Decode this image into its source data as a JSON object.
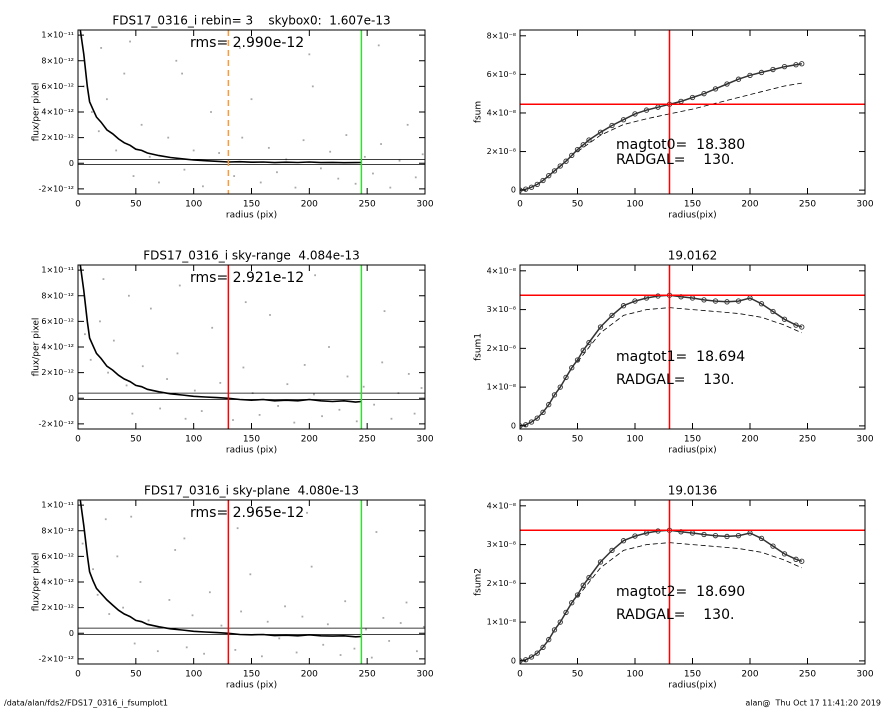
{
  "chart_data": [
    {
      "type": "scatter",
      "title": "FDS17_0316_i rebin= 3    skybox0:  1.607e-13",
      "annotations": [
        "rms= 2.990e-12"
      ],
      "xlabel": "radius (pix)",
      "ylabel": "flux/per pixel",
      "xlim": [
        0,
        300
      ],
      "ylim": [
        -2.4e-12,
        1.04e-11
      ],
      "xticks": [
        0,
        50,
        100,
        150,
        200,
        250,
        300
      ],
      "yticks": [
        {
          "value": 1e-11,
          "label": "1×10⁻¹¹"
        },
        {
          "value": 8e-12,
          "label": "8×10⁻¹²"
        },
        {
          "value": 6e-12,
          "label": "6×10⁻¹²"
        },
        {
          "value": 4e-12,
          "label": "4×10⁻¹²"
        },
        {
          "value": 2e-12,
          "label": "2×10⁻¹²"
        },
        0,
        {
          "value": -2e-12,
          "label": "-2×10⁻¹²"
        }
      ],
      "points": {
        "color": "#a8a8a8",
        "x": [
          5,
          12,
          18,
          25,
          33,
          40,
          48,
          55,
          62,
          70,
          78,
          85,
          92,
          100,
          108,
          115,
          122,
          135,
          142,
          150,
          158,
          165,
          172,
          180,
          188,
          195,
          203,
          210,
          218,
          225,
          232,
          240,
          248,
          255,
          262,
          270,
          278,
          285,
          292,
          298,
          20,
          45,
          90,
          140,
          200,
          260
        ],
        "y": [
          6e-12,
          4e-12,
          2.5e-12,
          5e-12,
          1e-12,
          7e-12,
          -1e-12,
          3e-12,
          5e-13,
          -1.5e-12,
          2e-12,
          8e-12,
          -5e-13,
          1e-12,
          -1.8e-12,
          4e-12,
          8e-13,
          -1e-12,
          2e-12,
          5e-12,
          -1.5e-12,
          1.2e-12,
          -7e-13,
          3e-13,
          -1.9e-12,
          1.8e-12,
          6e-12,
          -4e-13,
          9e-13,
          -1.2e-12,
          2.2e-12,
          -1.6e-12,
          5e-13,
          -8e-13,
          1.5e-12,
          -1.9e-12,
          2e-13,
          3e-12,
          -1.1e-12,
          7e-13,
          9e-12,
          9.5e-12,
          7e-12,
          9e-12,
          8.5e-12,
          9.2e-12
        ]
      },
      "profile": {
        "color": "#000000",
        "x": [
          2,
          5,
          8,
          10,
          13,
          16,
          20,
          25,
          30,
          35,
          40,
          45,
          50,
          55,
          60,
          70,
          80,
          90,
          100,
          110,
          120,
          130,
          140,
          150,
          160,
          170,
          180,
          190,
          200,
          210,
          220,
          230,
          240,
          245
        ],
        "y": [
          1.04e-11,
          8.5e-12,
          6e-12,
          4.8e-12,
          4.2e-12,
          3.6e-12,
          3.2e-12,
          2.6e-12,
          2.3e-12,
          1.9e-12,
          1.6e-12,
          1.4e-12,
          1.1e-12,
          1e-12,
          8e-13,
          6e-13,
          4.5e-13,
          3.5e-13,
          2.5e-13,
          2e-13,
          1.5e-13,
          1e-13,
          1.2e-13,
          8e-14,
          1e-13,
          5e-14,
          8e-14,
          6e-14,
          1e-13,
          5e-14,
          7e-14,
          4e-14,
          5e-14,
          6e-14
        ]
      },
      "hlines": [
        3e-13,
        -1e-13
      ],
      "vlines": [
        {
          "x": 130,
          "color": "#ff9933",
          "dashed": true
        },
        {
          "x": 245,
          "color": "#33dd33",
          "dashed": false
        }
      ]
    },
    {
      "type": "line",
      "annotations": [
        "magtot0=  18.380",
        "RADGAL=    130."
      ],
      "xlabel": "radius(pix)",
      "ylabel": "fsum",
      "xlim": [
        0,
        300
      ],
      "ylim": [
        -2e-09,
        8.3e-08
      ],
      "xticks": [
        0,
        50,
        100,
        150,
        200,
        250,
        300
      ],
      "yticks": [
        0,
        {
          "value": 2e-08,
          "label": "2×10⁻⁸"
        },
        {
          "value": 4e-08,
          "label": "4×10⁻⁸"
        },
        {
          "value": 6e-08,
          "label": "6×10⁻⁸"
        },
        {
          "value": 8e-08,
          "label": "8×10⁻⁸"
        }
      ],
      "growth": {
        "color": "#333333",
        "x": [
          0,
          5,
          10,
          15,
          20,
          25,
          30,
          35,
          40,
          45,
          50,
          55,
          60,
          70,
          80,
          90,
          100,
          110,
          120,
          130,
          140,
          150,
          160,
          170,
          180,
          190,
          200,
          210,
          220,
          230,
          240,
          245
        ],
        "y": [
          0,
          5e-10,
          1.5e-09,
          3e-09,
          5e-09,
          7.5e-09,
          1e-08,
          1.25e-08,
          1.5e-08,
          1.8e-08,
          2.1e-08,
          2.35e-08,
          2.6e-08,
          3e-08,
          3.35e-08,
          3.65e-08,
          3.95e-08,
          4.15e-08,
          4.3e-08,
          4.45e-08,
          4.6e-08,
          4.8e-08,
          5e-08,
          5.25e-08,
          5.5e-08,
          5.75e-08,
          5.95e-08,
          6.1e-08,
          6.25e-08,
          6.4e-08,
          6.5e-08,
          6.55e-08
        ]
      },
      "dashed": {
        "x": [
          50,
          70,
          90,
          110,
          130,
          150,
          170,
          190,
          210,
          230,
          245
        ],
        "y": [
          2e-08,
          2.85e-08,
          3.4e-08,
          3.7e-08,
          3.95e-08,
          4.2e-08,
          4.5e-08,
          4.8e-08,
          5.1e-08,
          5.4e-08,
          5.55e-08
        ]
      },
      "vline": 130,
      "hline": 4.45e-08,
      "cross_color": "#ff0000"
    },
    {
      "type": "scatter",
      "title": "FDS17_0316_i sky-range  4.084e-13",
      "annotations": [
        "rms= 2.921e-12"
      ],
      "xlabel": "radius (pix)",
      "ylabel": "flux/per pixel",
      "xlim": [
        0,
        300
      ],
      "ylim": [
        -2.4e-12,
        1.04e-11
      ],
      "xticks": [
        0,
        50,
        100,
        150,
        200,
        250,
        300
      ],
      "yticks": [
        {
          "value": 1e-11,
          "label": "1×10⁻¹¹"
        },
        {
          "value": 8e-12,
          "label": "8×10⁻¹²"
        },
        {
          "value": 6e-12,
          "label": "6×10⁻¹²"
        },
        {
          "value": 4e-12,
          "label": "4×10⁻¹²"
        },
        {
          "value": 2e-12,
          "label": "2×10⁻¹²"
        },
        0,
        {
          "value": -2e-12,
          "label": "-2×10⁻¹²"
        }
      ],
      "points": {
        "color": "#a8a8a8",
        "x": [
          6,
          11,
          19,
          26,
          31,
          42,
          47,
          56,
          63,
          71,
          77,
          86,
          93,
          101,
          107,
          116,
          123,
          134,
          143,
          151,
          157,
          166,
          173,
          181,
          187,
          196,
          204,
          211,
          217,
          226,
          233,
          241,
          247,
          256,
          263,
          271,
          277,
          286,
          291,
          297,
          22,
          44,
          88,
          145,
          205,
          265
        ],
        "y": [
          5e-12,
          3e-12,
          6e-12,
          2e-12,
          4.5e-12,
          1e-12,
          -1.2e-12,
          2.5e-12,
          7e-12,
          -8e-13,
          1.5e-12,
          3.5e-12,
          -1.6e-12,
          6e-13,
          -1e-12,
          5.5e-12,
          1.2e-12,
          -1.7e-12,
          2.4e-12,
          4e-13,
          -1.3e-12,
          6.5e-12,
          -6e-13,
          1.1e-12,
          -1.9e-12,
          2.6e-12,
          3e-13,
          -1.4e-12,
          4e-12,
          -9e-13,
          1.7e-12,
          -1.8e-12,
          9e-13,
          -5e-13,
          2.8e-12,
          -1.6e-12,
          4e-13,
          1.9e-12,
          -1.2e-12,
          8e-13,
          9.3e-12,
          8e-12,
          8.8e-12,
          7.5e-12,
          9.6e-12,
          6.8e-12
        ]
      },
      "profile": {
        "color": "#000000",
        "x": [
          2,
          5,
          8,
          10,
          13,
          16,
          20,
          25,
          30,
          35,
          40,
          45,
          50,
          55,
          60,
          70,
          80,
          90,
          100,
          110,
          120,
          130,
          140,
          150,
          160,
          170,
          180,
          190,
          200,
          210,
          220,
          230,
          240,
          245
        ],
        "y": [
          1.04e-11,
          8.4e-12,
          6e-12,
          4.7e-12,
          4.1e-12,
          3.5e-12,
          3.1e-12,
          2.5e-12,
          2.2e-12,
          1.8e-12,
          1.5e-12,
          1.3e-12,
          1e-12,
          9e-13,
          7e-13,
          5e-13,
          3.5e-13,
          2.5e-13,
          1.5e-13,
          1e-13,
          5e-14,
          0,
          -1e-13,
          -1.5e-13,
          -1e-13,
          -2e-13,
          -1.5e-13,
          -2e-13,
          -1e-13,
          -2e-13,
          -2.5e-13,
          -2e-13,
          -3e-13,
          -2.5e-13
        ]
      },
      "hlines": [
        4e-13,
        -1e-13
      ],
      "vlines": [
        {
          "x": 130,
          "color": "#ff0000",
          "dashed": false
        },
        {
          "x": 245,
          "color": "#33dd33",
          "dashed": false
        }
      ]
    },
    {
      "type": "line",
      "title": "19.0162",
      "annotations": [
        "magtot1=  18.694",
        "RADGAL=    130."
      ],
      "xlabel": "radius(pix)",
      "ylabel": "fsum1",
      "xlim": [
        0,
        300
      ],
      "ylim": [
        -8e-10,
        4.15e-08
      ],
      "xticks": [
        0,
        50,
        100,
        150,
        200,
        250,
        300
      ],
      "yticks": [
        0,
        {
          "value": 1e-08,
          "label": "1×10⁻⁸"
        },
        {
          "value": 2e-08,
          "label": "2×10⁻⁸"
        },
        {
          "value": 3e-08,
          "label": "3×10⁻⁸"
        },
        {
          "value": 4e-08,
          "label": "4×10⁻⁸"
        }
      ],
      "growth": {
        "color": "#333333",
        "x": [
          0,
          5,
          10,
          15,
          20,
          25,
          30,
          35,
          40,
          45,
          50,
          55,
          60,
          70,
          80,
          90,
          100,
          110,
          120,
          130,
          140,
          150,
          160,
          170,
          180,
          190,
          200,
          210,
          220,
          230,
          240,
          245
        ],
        "y": [
          0,
          3e-10,
          1e-09,
          2e-09,
          3.5e-09,
          5.5e-09,
          8e-09,
          1e-08,
          1.25e-08,
          1.5e-08,
          1.7e-08,
          1.95e-08,
          2.15e-08,
          2.55e-08,
          2.85e-08,
          3.1e-08,
          3.22e-08,
          3.3e-08,
          3.35e-08,
          3.37e-08,
          3.33e-08,
          3.3e-08,
          3.25e-08,
          3.22e-08,
          3.2e-08,
          3.22e-08,
          3.3e-08,
          3.15e-08,
          2.95e-08,
          2.75e-08,
          2.6e-08,
          2.55e-08
        ]
      },
      "dashed": {
        "x": [
          50,
          70,
          90,
          110,
          130,
          150,
          170,
          190,
          210,
          230,
          245
        ],
        "y": [
          1.65e-08,
          2.4e-08,
          2.85e-08,
          3e-08,
          3.05e-08,
          3e-08,
          2.95e-08,
          2.9e-08,
          2.8e-08,
          2.6e-08,
          2.4e-08
        ]
      },
      "vline": 130,
      "hline": 3.37e-08,
      "cross_color": "#ff0000"
    },
    {
      "type": "scatter",
      "title": "FDS17_0316_i sky-plane  4.080e-13",
      "annotations": [
        "rms= 2.965e-12"
      ],
      "xlabel": "radius (pix)",
      "ylabel": "flux/per pixel",
      "xlim": [
        0,
        300
      ],
      "ylim": [
        -2.4e-12,
        1.04e-11
      ],
      "xticks": [
        0,
        50,
        100,
        150,
        200,
        250,
        300
      ],
      "yticks": [
        {
          "value": 1e-11,
          "label": "1×10⁻¹¹"
        },
        {
          "value": 8e-12,
          "label": "8×10⁻¹²"
        },
        {
          "value": 6e-12,
          "label": "6×10⁻¹²"
        },
        {
          "value": 4e-12,
          "label": "4×10⁻¹²"
        },
        {
          "value": 2e-12,
          "label": "2×10⁻¹²"
        },
        0,
        {
          "value": -2e-12,
          "label": "-2×10⁻¹²"
        }
      ],
      "points": {
        "color": "#a8a8a8",
        "x": [
          4,
          13,
          17,
          27,
          34,
          39,
          49,
          54,
          61,
          69,
          79,
          84,
          94,
          99,
          109,
          114,
          124,
          136,
          141,
          149,
          159,
          164,
          174,
          179,
          189,
          194,
          202,
          212,
          216,
          227,
          231,
          239,
          249,
          254,
          264,
          269,
          279,
          284,
          293,
          299,
          24,
          46,
          92,
          138,
          198,
          258
        ],
        "y": [
          7e-12,
          5e-12,
          3e-12,
          1.5e-12,
          6e-12,
          2e-12,
          -8e-13,
          4e-12,
          1e-12,
          -1.4e-12,
          2.6e-12,
          6.5e-12,
          -1.1e-12,
          1.4e-12,
          -1.6e-12,
          3.2e-12,
          6e-13,
          -1.3e-12,
          1.7e-12,
          4.6e-12,
          -1.8e-12,
          9e-13,
          -4e-13,
          2.1e-12,
          -1.5e-12,
          1.3e-12,
          5.2e-12,
          -9e-13,
          7e-13,
          -1.7e-12,
          2.5e-12,
          -1.2e-12,
          3e-13,
          -1.9e-12,
          1.2e-12,
          -6e-13,
          8e-13,
          2.4e-12,
          -1.4e-12,
          5e-13,
          8.9e-12,
          9.1e-12,
          7.4e-12,
          8.2e-12,
          9.4e-12,
          7.9e-12
        ]
      },
      "profile": {
        "color": "#000000",
        "x": [
          2,
          5,
          8,
          10,
          13,
          16,
          20,
          25,
          30,
          35,
          40,
          45,
          50,
          55,
          60,
          70,
          80,
          90,
          100,
          110,
          120,
          130,
          140,
          150,
          160,
          170,
          180,
          190,
          200,
          210,
          220,
          230,
          240,
          245
        ],
        "y": [
          1.04e-11,
          8.4e-12,
          6.1e-12,
          4.8e-12,
          4.1e-12,
          3.5e-12,
          3.1e-12,
          2.6e-12,
          2.2e-12,
          1.8e-12,
          1.5e-12,
          1.3e-12,
          1e-12,
          9e-13,
          7e-13,
          5e-13,
          3.5e-13,
          2.5e-13,
          1.5e-13,
          1e-13,
          5e-14,
          0,
          -1e-13,
          -1.2e-13,
          -1e-13,
          -1.8e-13,
          -1.5e-13,
          -2e-13,
          -1.2e-13,
          -2e-13,
          -2.2e-13,
          -2e-13,
          -2.8e-13,
          -2.5e-13
        ]
      },
      "hlines": [
        4e-13,
        -1e-13
      ],
      "vlines": [
        {
          "x": 130,
          "color": "#ff0000",
          "dashed": false
        },
        {
          "x": 245,
          "color": "#33dd33",
          "dashed": false
        }
      ]
    },
    {
      "type": "line",
      "title": "19.0136",
      "annotations": [
        "magtot2=  18.690",
        "RADGAL=    130."
      ],
      "xlabel": "radius(pix)",
      "ylabel": "fsum2",
      "xlim": [
        0,
        300
      ],
      "ylim": [
        -8e-10,
        4.15e-08
      ],
      "xticks": [
        0,
        50,
        100,
        150,
        200,
        250,
        300
      ],
      "yticks": [
        0,
        {
          "value": 1e-08,
          "label": "1×10⁻⁸"
        },
        {
          "value": 2e-08,
          "label": "2×10⁻⁸"
        },
        {
          "value": 3e-08,
          "label": "3×10⁻⁸"
        },
        {
          "value": 4e-08,
          "label": "4×10⁻⁸"
        }
      ],
      "growth": {
        "color": "#333333",
        "x": [
          0,
          5,
          10,
          15,
          20,
          25,
          30,
          35,
          40,
          45,
          50,
          55,
          60,
          70,
          80,
          90,
          100,
          110,
          120,
          130,
          140,
          150,
          160,
          170,
          180,
          190,
          200,
          210,
          220,
          230,
          240,
          245
        ],
        "y": [
          0,
          3e-10,
          1e-09,
          2e-09,
          3.5e-09,
          5.5e-09,
          8e-09,
          1e-08,
          1.25e-08,
          1.5e-08,
          1.7e-08,
          1.95e-08,
          2.15e-08,
          2.55e-08,
          2.85e-08,
          3.1e-08,
          3.22e-08,
          3.3e-08,
          3.35e-08,
          3.37e-08,
          3.33e-08,
          3.3e-08,
          3.26e-08,
          3.23e-08,
          3.21e-08,
          3.23e-08,
          3.3e-08,
          3.16e-08,
          2.96e-08,
          2.76e-08,
          2.62e-08,
          2.57e-08
        ]
      },
      "dashed": {
        "x": [
          50,
          70,
          90,
          110,
          130,
          150,
          170,
          190,
          210,
          230,
          245
        ],
        "y": [
          1.65e-08,
          2.4e-08,
          2.85e-08,
          3e-08,
          3.05e-08,
          3e-08,
          2.95e-08,
          2.9e-08,
          2.8e-08,
          2.6e-08,
          2.4e-08
        ]
      },
      "vline": 130,
      "hline": 3.37e-08,
      "cross_color": "#ff0000"
    }
  ],
  "footer": {
    "path": "/data/alan/fds2/FDS17_0316_i_fsumplot1",
    "stamp": "alan@  Thu Oct 17 11:41:20 2019"
  }
}
